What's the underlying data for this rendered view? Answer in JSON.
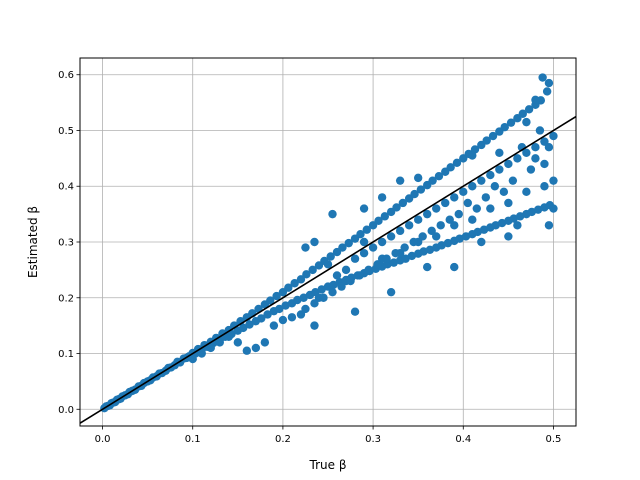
{
  "chart_data": {
    "type": "scatter",
    "title": "",
    "xlabel": "True β",
    "ylabel": "Estimated β",
    "xlim": [
      -0.025,
      0.525
    ],
    "ylim": [
      -0.03,
      0.63
    ],
    "grid": true,
    "legend": "none",
    "xticks": [
      0.0,
      0.1,
      0.2,
      0.3,
      0.4,
      0.5
    ],
    "xtick_labels": [
      "0.0",
      "0.1",
      "0.2",
      "0.3",
      "0.4",
      "0.5"
    ],
    "yticks": [
      0.0,
      0.1,
      0.2,
      0.3,
      0.4,
      0.5,
      0.6
    ],
    "ytick_labels": [
      "0.0",
      "0.1",
      "0.2",
      "0.3",
      "0.4",
      "0.5",
      "0.6"
    ],
    "point_color": "#1f77b4",
    "reference_line": {
      "kind": "identity",
      "from": [
        -0.025,
        -0.025
      ],
      "to": [
        0.525,
        0.525
      ],
      "color": "#000000"
    },
    "points": [
      [
        0.002,
        0.002
      ],
      [
        0.004,
        0.005
      ],
      [
        0.006,
        0.006
      ],
      [
        0.008,
        0.007
      ],
      [
        0.01,
        0.011
      ],
      [
        0.012,
        0.012
      ],
      [
        0.014,
        0.013
      ],
      [
        0.016,
        0.017
      ],
      [
        0.018,
        0.018
      ],
      [
        0.02,
        0.019
      ],
      [
        0.022,
        0.023
      ],
      [
        0.025,
        0.025
      ],
      [
        0.028,
        0.027
      ],
      [
        0.03,
        0.031
      ],
      [
        0.033,
        0.033
      ],
      [
        0.036,
        0.035
      ],
      [
        0.04,
        0.041
      ],
      [
        0.043,
        0.042
      ],
      [
        0.046,
        0.047
      ],
      [
        0.05,
        0.05
      ],
      [
        0.053,
        0.052
      ],
      [
        0.056,
        0.057
      ],
      [
        0.06,
        0.059
      ],
      [
        0.063,
        0.064
      ],
      [
        0.066,
        0.065
      ],
      [
        0.07,
        0.069
      ],
      [
        0.073,
        0.074
      ],
      [
        0.076,
        0.075
      ],
      [
        0.08,
        0.079
      ],
      [
        0.083,
        0.085
      ],
      [
        0.086,
        0.084
      ],
      [
        0.09,
        0.091
      ],
      [
        0.093,
        0.092
      ],
      [
        0.096,
        0.095
      ],
      [
        0.1,
        0.101
      ],
      [
        0.103,
        0.1
      ],
      [
        0.106,
        0.108
      ],
      [
        0.11,
        0.107
      ],
      [
        0.113,
        0.115
      ],
      [
        0.116,
        0.112
      ],
      [
        0.12,
        0.121
      ],
      [
        0.123,
        0.119
      ],
      [
        0.126,
        0.128
      ],
      [
        0.13,
        0.124
      ],
      [
        0.133,
        0.136
      ],
      [
        0.136,
        0.13
      ],
      [
        0.14,
        0.142
      ],
      [
        0.143,
        0.135
      ],
      [
        0.146,
        0.15
      ],
      [
        0.15,
        0.141
      ],
      [
        0.153,
        0.158
      ],
      [
        0.156,
        0.146
      ],
      [
        0.16,
        0.165
      ],
      [
        0.163,
        0.152
      ],
      [
        0.166,
        0.172
      ],
      [
        0.17,
        0.158
      ],
      [
        0.173,
        0.18
      ],
      [
        0.176,
        0.163
      ],
      [
        0.18,
        0.188
      ],
      [
        0.183,
        0.17
      ],
      [
        0.186,
        0.195
      ],
      [
        0.19,
        0.176
      ],
      [
        0.193,
        0.203
      ],
      [
        0.196,
        0.18
      ],
      [
        0.2,
        0.21
      ],
      [
        0.203,
        0.186
      ],
      [
        0.206,
        0.218
      ],
      [
        0.21,
        0.19
      ],
      [
        0.213,
        0.226
      ],
      [
        0.216,
        0.196
      ],
      [
        0.22,
        0.233
      ],
      [
        0.223,
        0.2
      ],
      [
        0.226,
        0.242
      ],
      [
        0.23,
        0.205
      ],
      [
        0.233,
        0.25
      ],
      [
        0.236,
        0.21
      ],
      [
        0.24,
        0.258
      ],
      [
        0.243,
        0.215
      ],
      [
        0.246,
        0.266
      ],
      [
        0.25,
        0.22
      ],
      [
        0.253,
        0.274
      ],
      [
        0.256,
        0.223
      ],
      [
        0.26,
        0.282
      ],
      [
        0.263,
        0.228
      ],
      [
        0.266,
        0.29
      ],
      [
        0.27,
        0.232
      ],
      [
        0.273,
        0.298
      ],
      [
        0.276,
        0.236
      ],
      [
        0.28,
        0.306
      ],
      [
        0.283,
        0.24
      ],
      [
        0.286,
        0.314
      ],
      [
        0.29,
        0.244
      ],
      [
        0.293,
        0.322
      ],
      [
        0.296,
        0.248
      ],
      [
        0.3,
        0.33
      ],
      [
        0.303,
        0.252
      ],
      [
        0.306,
        0.338
      ],
      [
        0.31,
        0.256
      ],
      [
        0.313,
        0.346
      ],
      [
        0.316,
        0.26
      ],
      [
        0.32,
        0.354
      ],
      [
        0.323,
        0.263
      ],
      [
        0.326,
        0.362
      ],
      [
        0.33,
        0.267
      ],
      [
        0.333,
        0.37
      ],
      [
        0.336,
        0.27
      ],
      [
        0.34,
        0.378
      ],
      [
        0.343,
        0.275
      ],
      [
        0.346,
        0.386
      ],
      [
        0.35,
        0.279
      ],
      [
        0.353,
        0.394
      ],
      [
        0.356,
        0.283
      ],
      [
        0.36,
        0.402
      ],
      [
        0.363,
        0.286
      ],
      [
        0.366,
        0.41
      ],
      [
        0.37,
        0.29
      ],
      [
        0.373,
        0.418
      ],
      [
        0.376,
        0.294
      ],
      [
        0.38,
        0.426
      ],
      [
        0.383,
        0.298
      ],
      [
        0.386,
        0.434
      ],
      [
        0.39,
        0.302
      ],
      [
        0.393,
        0.442
      ],
      [
        0.396,
        0.306
      ],
      [
        0.4,
        0.45
      ],
      [
        0.403,
        0.31
      ],
      [
        0.406,
        0.458
      ],
      [
        0.41,
        0.314
      ],
      [
        0.413,
        0.466
      ],
      [
        0.416,
        0.318
      ],
      [
        0.42,
        0.474
      ],
      [
        0.423,
        0.322
      ],
      [
        0.426,
        0.482
      ],
      [
        0.43,
        0.326
      ],
      [
        0.433,
        0.49
      ],
      [
        0.436,
        0.33
      ],
      [
        0.44,
        0.498
      ],
      [
        0.443,
        0.334
      ],
      [
        0.446,
        0.506
      ],
      [
        0.45,
        0.338
      ],
      [
        0.453,
        0.514
      ],
      [
        0.456,
        0.342
      ],
      [
        0.46,
        0.522
      ],
      [
        0.463,
        0.346
      ],
      [
        0.466,
        0.53
      ],
      [
        0.47,
        0.35
      ],
      [
        0.473,
        0.538
      ],
      [
        0.476,
        0.354
      ],
      [
        0.48,
        0.546
      ],
      [
        0.483,
        0.358
      ],
      [
        0.486,
        0.554
      ],
      [
        0.49,
        0.362
      ],
      [
        0.493,
        0.57
      ],
      [
        0.496,
        0.366
      ],
      [
        0.488,
        0.595
      ],
      [
        0.495,
        0.585
      ],
      [
        0.47,
        0.515
      ],
      [
        0.48,
        0.555
      ],
      [
        0.44,
        0.46
      ],
      [
        0.41,
        0.455
      ],
      [
        0.35,
        0.415
      ],
      [
        0.33,
        0.41
      ],
      [
        0.31,
        0.38
      ],
      [
        0.29,
        0.36
      ],
      [
        0.255,
        0.35
      ],
      [
        0.235,
        0.3
      ],
      [
        0.225,
        0.29
      ],
      [
        0.235,
        0.15
      ],
      [
        0.24,
        0.2
      ],
      [
        0.28,
        0.175
      ],
      [
        0.32,
        0.21
      ],
      [
        0.36,
        0.255
      ],
      [
        0.39,
        0.255
      ],
      [
        0.42,
        0.3
      ],
      [
        0.45,
        0.31
      ],
      [
        0.46,
        0.33
      ],
      [
        0.495,
        0.33
      ],
      [
        0.5,
        0.36
      ],
      [
        0.15,
        0.12
      ],
      [
        0.16,
        0.105
      ],
      [
        0.17,
        0.11
      ],
      [
        0.18,
        0.12
      ],
      [
        0.19,
        0.15
      ],
      [
        0.2,
        0.16
      ],
      [
        0.21,
        0.165
      ],
      [
        0.22,
        0.17
      ],
      [
        0.14,
        0.13
      ],
      [
        0.13,
        0.12
      ],
      [
        0.12,
        0.11
      ],
      [
        0.11,
        0.1
      ],
      [
        0.1,
        0.09
      ],
      [
        0.26,
        0.24
      ],
      [
        0.27,
        0.25
      ],
      [
        0.28,
        0.27
      ],
      [
        0.29,
        0.28
      ],
      [
        0.3,
        0.29
      ],
      [
        0.31,
        0.3
      ],
      [
        0.32,
        0.31
      ],
      [
        0.33,
        0.32
      ],
      [
        0.34,
        0.33
      ],
      [
        0.35,
        0.34
      ],
      [
        0.36,
        0.35
      ],
      [
        0.37,
        0.36
      ],
      [
        0.38,
        0.37
      ],
      [
        0.39,
        0.38
      ],
      [
        0.4,
        0.39
      ],
      [
        0.41,
        0.4
      ],
      [
        0.42,
        0.41
      ],
      [
        0.43,
        0.42
      ],
      [
        0.44,
        0.43
      ],
      [
        0.45,
        0.44
      ],
      [
        0.46,
        0.45
      ],
      [
        0.47,
        0.46
      ],
      [
        0.48,
        0.47
      ],
      [
        0.49,
        0.48
      ],
      [
        0.5,
        0.49
      ],
      [
        0.25,
        0.26
      ],
      [
        0.27,
        0.23
      ],
      [
        0.29,
        0.3
      ],
      [
        0.31,
        0.27
      ],
      [
        0.33,
        0.28
      ],
      [
        0.35,
        0.3
      ],
      [
        0.37,
        0.31
      ],
      [
        0.39,
        0.33
      ],
      [
        0.41,
        0.34
      ],
      [
        0.43,
        0.36
      ],
      [
        0.45,
        0.37
      ],
      [
        0.47,
        0.39
      ],
      [
        0.49,
        0.4
      ],
      [
        0.5,
        0.41
      ],
      [
        0.48,
        0.45
      ],
      [
        0.49,
        0.44
      ],
      [
        0.485,
        0.5
      ],
      [
        0.495,
        0.47
      ],
      [
        0.475,
        0.43
      ],
      [
        0.465,
        0.47
      ],
      [
        0.455,
        0.41
      ],
      [
        0.445,
        0.39
      ],
      [
        0.435,
        0.4
      ],
      [
        0.425,
        0.38
      ],
      [
        0.415,
        0.36
      ],
      [
        0.405,
        0.37
      ],
      [
        0.395,
        0.35
      ],
      [
        0.385,
        0.34
      ],
      [
        0.375,
        0.33
      ],
      [
        0.365,
        0.32
      ],
      [
        0.355,
        0.31
      ],
      [
        0.345,
        0.3
      ],
      [
        0.335,
        0.29
      ],
      [
        0.325,
        0.28
      ],
      [
        0.315,
        0.27
      ],
      [
        0.305,
        0.26
      ],
      [
        0.295,
        0.25
      ],
      [
        0.285,
        0.24
      ],
      [
        0.275,
        0.23
      ],
      [
        0.265,
        0.22
      ],
      [
        0.255,
        0.21
      ],
      [
        0.245,
        0.2
      ],
      [
        0.235,
        0.19
      ],
      [
        0.225,
        0.18
      ]
    ]
  }
}
